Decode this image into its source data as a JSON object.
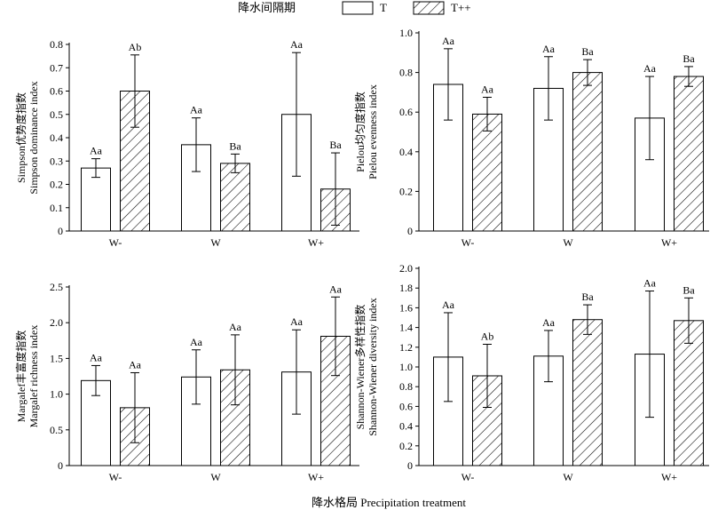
{
  "legend": {
    "title": "降水间隔期",
    "items": [
      {
        "name": "T",
        "pattern": "open"
      },
      {
        "name": "T++",
        "pattern": "hatched"
      }
    ]
  },
  "x_title": "降水格局 Precipitation treatment",
  "chart_data": [
    {
      "type": "bar",
      "panel": "top-left",
      "ylabel": [
        "Simpson优势度指数",
        "Simpson dominance index"
      ],
      "categories": [
        "W-",
        "W",
        "W+"
      ],
      "ylim": [
        0,
        0.8
      ],
      "yticks": [
        0,
        0.1,
        0.2,
        0.3,
        0.4,
        0.5,
        0.6,
        0.7,
        0.8
      ],
      "ytick_labels": [
        "0",
        "0.1",
        "0.2",
        "0.3",
        "0.4",
        "0.5",
        "0.6",
        "0.7",
        "0.8"
      ],
      "series": [
        {
          "name": "T",
          "values": [
            0.27,
            0.37,
            0.5
          ],
          "errors": [
            0.04,
            0.115,
            0.265
          ],
          "labels": [
            "Aa",
            "Aa",
            "Aa"
          ]
        },
        {
          "name": "T++",
          "values": [
            0.6,
            0.29,
            0.18
          ],
          "errors": [
            0.155,
            0.04,
            0.155
          ],
          "labels": [
            "Ab",
            "Ba",
            "Ba"
          ]
        }
      ]
    },
    {
      "type": "bar",
      "panel": "top-right",
      "ylabel": [
        "Pielou均匀度指数",
        "Pielou evenness index"
      ],
      "categories": [
        "W-",
        "W",
        "W+"
      ],
      "ylim": [
        0,
        1.0
      ],
      "yticks": [
        0,
        0.2,
        0.4,
        0.6,
        0.8,
        1.0
      ],
      "ytick_labels": [
        "0",
        "0.2",
        "0.4",
        "0.6",
        "0.8",
        "1.0"
      ],
      "series": [
        {
          "name": "T",
          "values": [
            0.74,
            0.72,
            0.57
          ],
          "errors": [
            0.18,
            0.16,
            0.21
          ],
          "labels": [
            "Aa",
            "Aa",
            "Aa"
          ]
        },
        {
          "name": "T++",
          "values": [
            0.59,
            0.8,
            0.78
          ],
          "errors": [
            0.085,
            0.065,
            0.05
          ],
          "labels": [
            "Aa",
            "Ba",
            "Ba"
          ]
        }
      ]
    },
    {
      "type": "bar",
      "panel": "bottom-left",
      "ylabel": [
        "Margalef丰富度指数",
        "Margalef richness  index"
      ],
      "categories": [
        "W-",
        "W",
        "W+"
      ],
      "ylim": [
        0,
        2.5
      ],
      "yticks": [
        0,
        0.5,
        1.0,
        1.5,
        2.0,
        2.5
      ],
      "ytick_labels": [
        "0",
        "0.5",
        "1.0",
        "1.5",
        "2.0",
        "2.5"
      ],
      "series": [
        {
          "name": "T",
          "values": [
            1.19,
            1.24,
            1.31
          ],
          "errors": [
            0.21,
            0.38,
            0.59
          ],
          "labels": [
            "Aa",
            "Aa",
            "Aa"
          ]
        },
        {
          "name": "T++",
          "values": [
            0.81,
            1.34,
            1.81
          ],
          "errors": [
            0.49,
            0.49,
            0.55
          ],
          "labels": [
            "Aa",
            "Aa",
            "Aa"
          ]
        }
      ]
    },
    {
      "type": "bar",
      "panel": "bottom-right",
      "ylabel": [
        "Shannon-Wiener多样性指数",
        "Shannon-Wiener diversity index"
      ],
      "categories": [
        "W-",
        "W",
        "W+"
      ],
      "ylim": [
        0,
        2.0
      ],
      "yticks": [
        0,
        0.2,
        0.4,
        0.6,
        0.8,
        1.0,
        1.2,
        1.4,
        1.6,
        1.8,
        2.0
      ],
      "ytick_labels": [
        "0",
        "0.2",
        "0.4",
        "0.6",
        "0.8",
        "1.0",
        "1.2",
        "1.4",
        "1.6",
        "1.8",
        "2.0"
      ],
      "series": [
        {
          "name": "T",
          "values": [
            1.1,
            1.11,
            1.13
          ],
          "errors": [
            0.45,
            0.26,
            0.64
          ],
          "labels": [
            "Aa",
            "Aa",
            "Aa"
          ]
        },
        {
          "name": "T++",
          "values": [
            0.91,
            1.48,
            1.47
          ],
          "errors": [
            0.32,
            0.15,
            0.23
          ],
          "labels": [
            "Ab",
            "Ba",
            "Ba"
          ]
        }
      ]
    }
  ]
}
